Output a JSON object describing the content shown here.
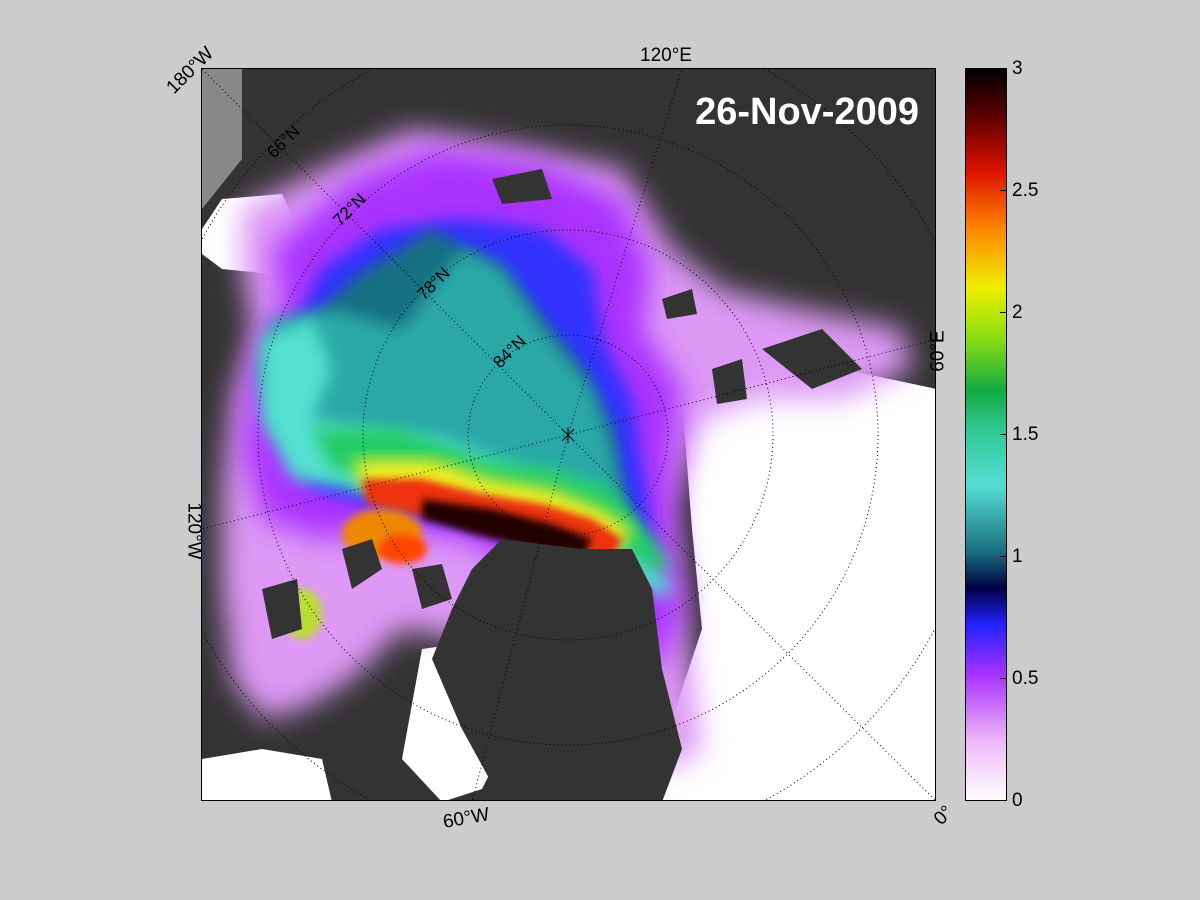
{
  "map": {
    "date": "26-Nov-2009",
    "longitude_labels": [
      "180°W",
      "120°E",
      "60°E",
      "0°",
      "60°W",
      "120°W"
    ],
    "latitude_labels": [
      "66°N",
      "72°N",
      "78°N",
      "84°N"
    ],
    "colors": {
      "land": "#333333",
      "ocean_grey": "#888888",
      "open_water": "#ffffff",
      "background": "#cccccc"
    }
  },
  "colorbar": {
    "min": 0,
    "max": 3,
    "ticks": [
      "0",
      "0.5",
      "1",
      "1.5",
      "2",
      "2.5",
      "3"
    ]
  }
}
